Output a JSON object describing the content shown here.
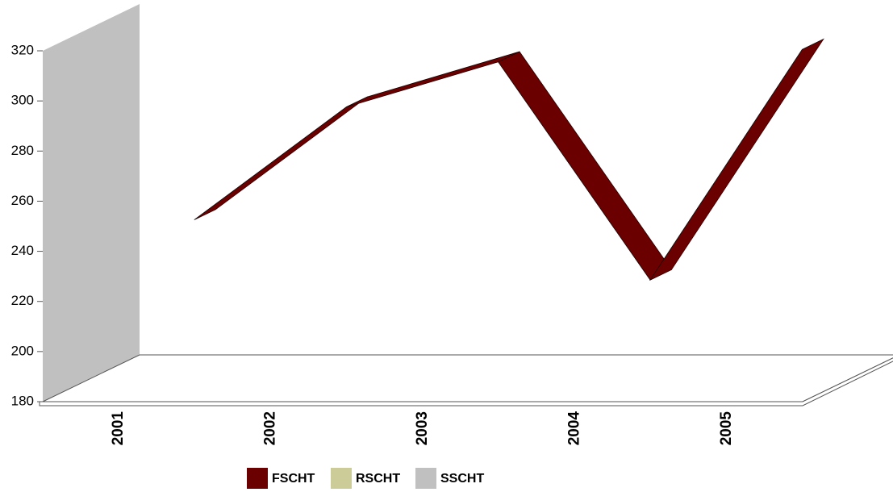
{
  "chart_data": {
    "type": "line3d",
    "categories": [
      "2001",
      "2002",
      "2003",
      "2004",
      "2005"
    ],
    "series": [
      {
        "name": "FSCHT",
        "color": "#6b0000",
        "values": [
          238,
          283,
          301,
          214,
          306
        ]
      },
      {
        "name": "RSCHT",
        "color": "#cccc99",
        "values": [
          null,
          null,
          null,
          null,
          null
        ]
      },
      {
        "name": "SSCHT",
        "color": "#c0c0c0",
        "values": [
          null,
          null,
          null,
          null,
          null
        ]
      }
    ],
    "ylim": [
      180,
      320
    ],
    "yticks": [
      180,
      200,
      220,
      240,
      260,
      280,
      300,
      320
    ]
  }
}
